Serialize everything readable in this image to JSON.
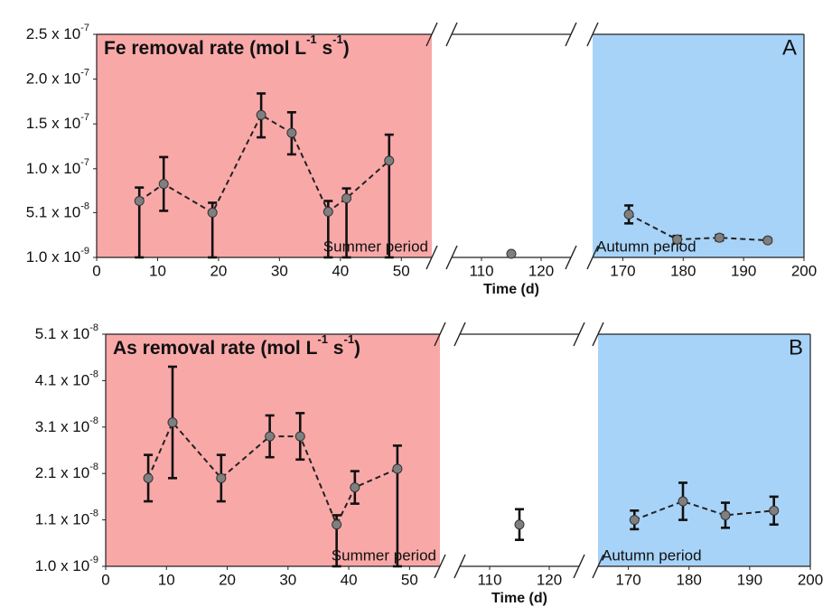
{
  "chart_data": [
    {
      "type": "scatter",
      "panel_label": "A",
      "title": [
        {
          "text": "Fe removal rate (mol L"
        },
        {
          "sup": "-1"
        },
        {
          "text": " s"
        },
        {
          "sup": "-1"
        },
        {
          "text": ")"
        }
      ],
      "xlabel": "Time (d)",
      "x_segments": [
        {
          "xlim": [
            0,
            55
          ],
          "xticks": [
            0,
            10,
            20,
            30,
            40,
            50
          ],
          "background": "#f9a8a8",
          "label": "Summer period"
        },
        {
          "xlim": [
            105,
            125
          ],
          "xticks": [
            110,
            120
          ]
        },
        {
          "xlim": [
            165,
            200
          ],
          "xticks": [
            170,
            180,
            190,
            200
          ],
          "background": "#a8d3f8",
          "label": "Autumn period"
        }
      ],
      "ylim": [
        1e-09,
        2.5e-07
      ],
      "yticks": [
        {
          "value": 1e-09,
          "label": "1.0 x 10",
          "exponent": "-9"
        },
        {
          "value": 5.1e-08,
          "label": "5.1 x 10",
          "exponent": "-8"
        },
        {
          "value": 1e-07,
          "label": "1.0 x 10",
          "exponent": "-7"
        },
        {
          "value": 1.5e-07,
          "label": "1.5 x 10",
          "exponent": "-7"
        },
        {
          "value": 2e-07,
          "label": "2.0 x 10",
          "exponent": "-7"
        },
        {
          "value": 2.5e-07,
          "label": "2.5 x 10",
          "exponent": "-7"
        }
      ],
      "x": [
        7,
        11,
        19,
        27,
        32,
        38,
        41,
        48,
        115,
        171,
        179,
        186,
        194
      ],
      "values": [
        6.4e-08,
        8.3e-08,
        5.1e-08,
        1.6e-07,
        1.4e-07,
        5.2e-08,
        6.7e-08,
        1.09e-07,
        5e-09,
        4.9e-08,
        2.1e-08,
        2.3e-08,
        2e-08
      ],
      "err_low": [
        6.3e-08,
        3e-08,
        5e-08,
        2.5e-08,
        2.4e-08,
        5.1e-08,
        6.6e-08,
        1.08e-07,
        null,
        1e-08,
        4e-09,
        3e-09,
        2e-09
      ],
      "err_high": [
        1.5e-08,
        3e-08,
        1.1e-08,
        2.4e-08,
        2.3e-08,
        1.2e-08,
        1.1e-08,
        2.9e-08,
        null,
        1e-08,
        4e-09,
        3e-09,
        2e-09
      ],
      "color": "#7f7f7f"
    },
    {
      "type": "scatter",
      "panel_label": "B",
      "title": [
        {
          "text": "As removal rate (mol L"
        },
        {
          "sup": "-1"
        },
        {
          "text": " s"
        },
        {
          "sup": "-1"
        },
        {
          "text": ")"
        }
      ],
      "xlabel": "Time (d)",
      "x_segments": [
        {
          "xlim": [
            0,
            55
          ],
          "xticks": [
            0,
            10,
            20,
            30,
            40,
            50
          ],
          "background": "#f9a8a8",
          "label": "Summer period"
        },
        {
          "xlim": [
            105,
            125
          ],
          "xticks": [
            110,
            120
          ]
        },
        {
          "xlim": [
            165,
            200
          ],
          "xticks": [
            170,
            180,
            190,
            200
          ],
          "background": "#a8d3f8",
          "label": "Autumn period"
        }
      ],
      "ylim": [
        1e-09,
        5.1e-08
      ],
      "yticks": [
        {
          "value": 1e-09,
          "label": "1.0 x 10",
          "exponent": "-9"
        },
        {
          "value": 1.1e-08,
          "label": "1.1 x 10",
          "exponent": "-8"
        },
        {
          "value": 2.1e-08,
          "label": "2.1 x 10",
          "exponent": "-8"
        },
        {
          "value": 3.1e-08,
          "label": "3.1 x 10",
          "exponent": "-8"
        },
        {
          "value": 4.1e-08,
          "label": "4.1 x 10",
          "exponent": "-8"
        },
        {
          "value": 5.1e-08,
          "label": "5.1 x 10",
          "exponent": "-8"
        }
      ],
      "x": [
        7,
        11,
        19,
        27,
        32,
        38,
        41,
        48,
        115,
        171,
        179,
        186,
        194
      ],
      "values": [
        2e-08,
        3.2e-08,
        2e-08,
        2.9e-08,
        2.9e-08,
        1e-08,
        1.8e-08,
        2.2e-08,
        1e-08,
        1.1e-08,
        1.5e-08,
        1.2e-08,
        1.3e-08
      ],
      "err_low": [
        5e-09,
        1.2e-08,
        5e-09,
        4.5e-09,
        5e-09,
        9e-09,
        3.5e-09,
        2.1e-08,
        3.3e-09,
        2e-09,
        4e-09,
        2.7e-09,
        3e-09
      ],
      "err_high": [
        5e-09,
        1.2e-08,
        5e-09,
        4.5e-09,
        5e-09,
        2e-09,
        3.5e-09,
        5e-09,
        3.3e-09,
        2e-09,
        4e-09,
        2.7e-09,
        3e-09
      ],
      "color": "#7f7f7f"
    }
  ]
}
